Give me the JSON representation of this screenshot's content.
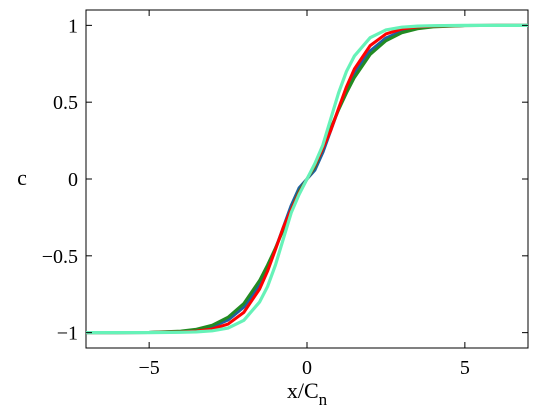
{
  "chart_data": {
    "type": "line",
    "xlabel": "x/C",
    "xlabel_sub": "n",
    "ylabel": "c",
    "xlim": [
      -7,
      7
    ],
    "ylim": [
      -1.1,
      1.1
    ],
    "xticks": [
      -5,
      0,
      5
    ],
    "xtick_labels": [
      "−5",
      "0",
      "5"
    ],
    "yticks": [
      -1,
      -0.5,
      0,
      0.5,
      1
    ],
    "ytick_labels": [
      "−1",
      "−0.5",
      "0",
      "0.5",
      "1"
    ],
    "grid": false,
    "legend": false,
    "series": [
      {
        "color": "#1f5fa0",
        "x": [
          -7,
          -6,
          -5,
          -4,
          -3.5,
          -3,
          -2.5,
          -2,
          -1.5,
          -1.25,
          -1,
          -0.75,
          -0.5,
          -0.25,
          0,
          0.25,
          0.5,
          0.75,
          1,
          1.25,
          1.5,
          2,
          2.5,
          3,
          3.5,
          4,
          5,
          6,
          7
        ],
        "y": [
          -1.0,
          -1.0,
          -0.999,
          -0.993,
          -0.983,
          -0.962,
          -0.918,
          -0.834,
          -0.688,
          -0.58,
          -0.455,
          -0.314,
          -0.172,
          -0.058,
          0.0,
          0.058,
          0.172,
          0.314,
          0.455,
          0.58,
          0.688,
          0.834,
          0.918,
          0.962,
          0.983,
          0.993,
          0.999,
          1.0,
          1.0
        ]
      },
      {
        "color": "#228b22",
        "x": [
          -7,
          -6,
          -5,
          -4,
          -3.5,
          -3,
          -2.5,
          -2,
          -1.5,
          -1.25,
          -1,
          -0.75,
          -0.5,
          -0.25,
          0,
          0.25,
          0.5,
          0.75,
          1,
          1.25,
          1.5,
          2,
          2.5,
          3,
          3.5,
          4,
          5,
          6,
          7
        ],
        "y": [
          -1.0,
          -1.0,
          -0.998,
          -0.99,
          -0.978,
          -0.952,
          -0.9,
          -0.81,
          -0.66,
          -0.56,
          -0.45,
          -0.33,
          -0.2,
          -0.08,
          0.0,
          0.08,
          0.2,
          0.33,
          0.45,
          0.56,
          0.66,
          0.81,
          0.9,
          0.952,
          0.978,
          0.99,
          0.998,
          1.0,
          1.0
        ]
      },
      {
        "color": "#ff0000",
        "x": [
          -7,
          -6,
          -5,
          -4,
          -3.5,
          -3,
          -2.5,
          -2,
          -1.5,
          -1.25,
          -1,
          -0.75,
          -0.5,
          -0.25,
          0,
          0.25,
          0.5,
          0.75,
          1,
          1.25,
          1.5,
          2,
          2.5,
          3,
          3.5,
          4,
          5,
          6,
          7
        ],
        "y": [
          -1.0,
          -1.0,
          -0.999,
          -0.996,
          -0.99,
          -0.976,
          -0.944,
          -0.868,
          -0.716,
          -0.6,
          -0.46,
          -0.315,
          -0.2,
          -0.09,
          0.0,
          0.09,
          0.2,
          0.315,
          0.46,
          0.6,
          0.716,
          0.868,
          0.944,
          0.976,
          0.99,
          0.996,
          0.999,
          1.0,
          1.0
        ]
      },
      {
        "color": "#66f2b8",
        "x": [
          -7,
          -6,
          -5,
          -4,
          -3.5,
          -3,
          -2.5,
          -2,
          -1.5,
          -1.25,
          -1,
          -0.75,
          -0.5,
          -0.25,
          0,
          0.25,
          0.5,
          0.75,
          1,
          1.25,
          1.5,
          2,
          2.5,
          3,
          3.5,
          4,
          5,
          6,
          7
        ],
        "y": [
          -1.0,
          -1.0,
          -1.0,
          -0.998,
          -0.995,
          -0.988,
          -0.97,
          -0.92,
          -0.8,
          -0.7,
          -0.56,
          -0.39,
          -0.22,
          -0.1,
          0.0,
          0.1,
          0.22,
          0.39,
          0.56,
          0.7,
          0.8,
          0.92,
          0.97,
          0.988,
          0.995,
          0.998,
          1.0,
          1.0,
          1.0
        ]
      }
    ]
  }
}
